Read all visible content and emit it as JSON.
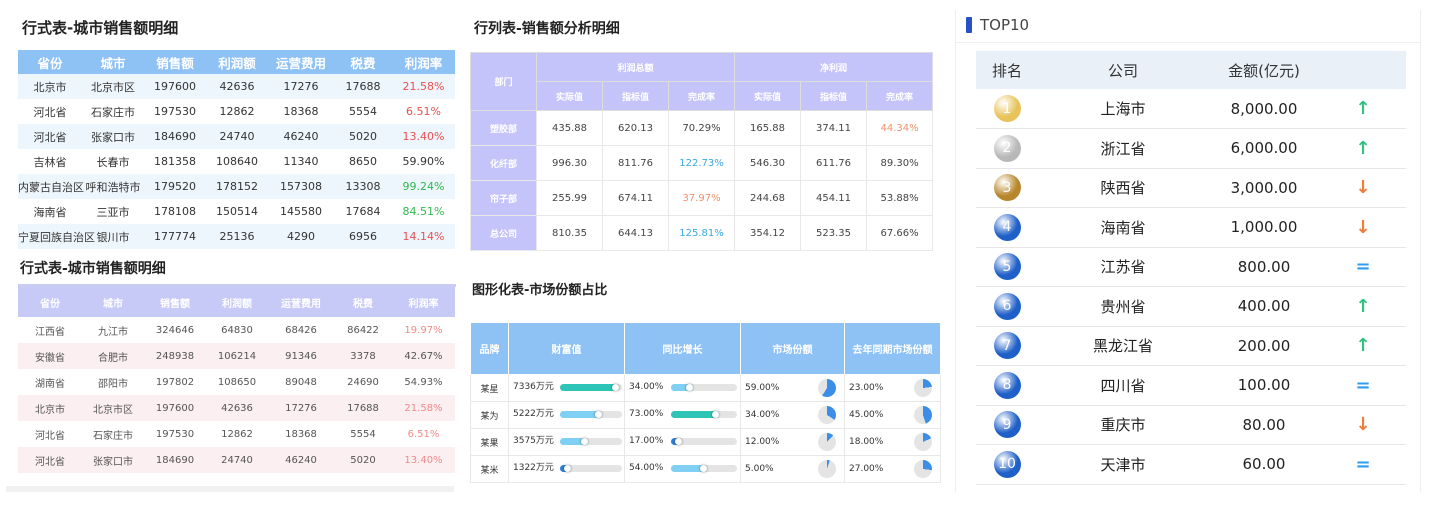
{
  "p1": {
    "title": "行式表-城市销售额明细",
    "headers": [
      "省份",
      "城市",
      "销售额",
      "利润额",
      "运营费用",
      "税费",
      "利润率"
    ],
    "rows": [
      [
        "北京市",
        "北京市区",
        "197600",
        "42636",
        "17276",
        "17688",
        "21.58%"
      ],
      [
        "河北省",
        "石家庄市",
        "197530",
        "12862",
        "18368",
        "5554",
        "6.51%"
      ],
      [
        "河北省",
        "张家口市",
        "184690",
        "24740",
        "46240",
        "5020",
        "13.40%"
      ],
      [
        "吉林省",
        "长春市",
        "181358",
        "108640",
        "11340",
        "8650",
        "59.90%"
      ],
      [
        "内蒙古自治区",
        "呼和浩特市",
        "179520",
        "178152",
        "157308",
        "13308",
        "99.24%"
      ],
      [
        "海南省",
        "三亚市",
        "178108",
        "150514",
        "145580",
        "17684",
        "84.51%"
      ],
      [
        "宁夏回族自治区",
        "银川市",
        "177774",
        "25136",
        "4290",
        "6956",
        "14.14%"
      ]
    ],
    "rate_colors": [
      "#e85050",
      "#e85050",
      "#e85050",
      "#333333",
      "#2eb84d",
      "#2eb84d",
      "#e85050"
    ]
  },
  "p2": {
    "title": "行式表-城市销售额明细",
    "headers": [
      "省份",
      "城市",
      "销售额",
      "利润额",
      "运营费用",
      "税费",
      "利润率"
    ],
    "rows": [
      [
        "江西省",
        "九江市",
        "324646",
        "64830",
        "68426",
        "86422",
        "19.97%"
      ],
      [
        "安徽省",
        "合肥市",
        "248938",
        "106214",
        "91346",
        "3378",
        "42.67%"
      ],
      [
        "湖南省",
        "邵阳市",
        "197802",
        "108650",
        "89048",
        "24690",
        "54.93%"
      ],
      [
        "北京市",
        "北京市区",
        "197600",
        "42636",
        "17276",
        "17688",
        "21.58%"
      ],
      [
        "河北省",
        "石家庄市",
        "197530",
        "12862",
        "18368",
        "5554",
        "6.51%"
      ],
      [
        "河北省",
        "张家口市",
        "184690",
        "24740",
        "46240",
        "5020",
        "13.40%"
      ]
    ],
    "rate_colors": [
      "#f08a8a",
      "#555555",
      "#555555",
      "#f08a8a",
      "#f08a8a",
      "#f08a8a"
    ]
  },
  "p3": {
    "title": "行列表-销售额分析明细",
    "dept_label": "部门",
    "group1": "利润总额",
    "group2": "净利润",
    "subheaders": [
      "实际值",
      "指标值",
      "完成率",
      "实际值",
      "指标值",
      "完成率"
    ],
    "rows": [
      {
        "dept": "塑胶部",
        "v": [
          "435.88",
          "620.13",
          "70.29%",
          "165.88",
          "374.11",
          "44.34%"
        ]
      },
      {
        "dept": "化纤部",
        "v": [
          "996.30",
          "811.76",
          "122.73%",
          "546.30",
          "611.76",
          "89.30%"
        ]
      },
      {
        "dept": "帘子部",
        "v": [
          "255.99",
          "674.11",
          "37.97%",
          "244.68",
          "454.11",
          "53.88%"
        ]
      },
      {
        "dept": "总公司",
        "v": [
          "810.35",
          "644.13",
          "125.81%",
          "354.12",
          "523.35",
          "67.66%"
        ]
      }
    ],
    "rate_colors": [
      [
        "#444444",
        "#f0916a"
      ],
      [
        "#3ba8e0",
        "#444444"
      ],
      [
        "#f0916a",
        "#444444"
      ],
      [
        "#3ba8e0",
        "#444444"
      ]
    ]
  },
  "p4": {
    "title": "图形化表-市场份额占比",
    "headers": [
      "品牌",
      "财富值",
      "同比增长",
      "市场份额",
      "去年同期市场份额"
    ],
    "rows": [
      {
        "brand": "某星",
        "wealth": "7336万元",
        "wealth_frac": 0.95,
        "wealth_color": "#2ec4b6",
        "growth": "34.00%",
        "growth_frac": 0.34,
        "growth_color": "#7fd0f2",
        "share": "59.00%",
        "share_frac": 0.59,
        "last": "23.00%",
        "last_frac": 0.23
      },
      {
        "brand": "某为",
        "wealth": "5222万元",
        "wealth_frac": 0.68,
        "wealth_color": "#7fd0f2",
        "growth": "73.00%",
        "growth_frac": 0.73,
        "growth_color": "#2ec4b6",
        "share": "34.00%",
        "share_frac": 0.34,
        "last": "45.00%",
        "last_frac": 0.45
      },
      {
        "brand": "某果",
        "wealth": "3575万元",
        "wealth_frac": 0.45,
        "wealth_color": "#7fd0f2",
        "growth": "17.00%",
        "growth_frac": 0.17,
        "growth_color": "#2f7fd8",
        "share": "12.00%",
        "share_frac": 0.12,
        "last": "18.00%",
        "last_frac": 0.18
      },
      {
        "brand": "某米",
        "wealth": "1322万元",
        "wealth_frac": 0.18,
        "wealth_color": "#2f7fd8",
        "growth": "54.00%",
        "growth_frac": 0.54,
        "growth_color": "#7fd0f2",
        "share": "5.00%",
        "share_frac": 0.05,
        "last": "27.00%",
        "last_frac": 0.27
      }
    ]
  },
  "p5": {
    "title": "TOP10",
    "headers": [
      "排名",
      "公司",
      "金额(亿元)"
    ],
    "rows": [
      {
        "rank": "1",
        "name": "上海市",
        "amount": "8,000.00",
        "trend": "up",
        "medal": "gold"
      },
      {
        "rank": "2",
        "name": "浙江省",
        "amount": "6,000.00",
        "trend": "up",
        "medal": "silver"
      },
      {
        "rank": "3",
        "name": "陕西省",
        "amount": "3,000.00",
        "trend": "down",
        "medal": "bronze"
      },
      {
        "rank": "4",
        "name": "海南省",
        "amount": "1,000.00",
        "trend": "down",
        "medal": "blue"
      },
      {
        "rank": "5",
        "name": "江苏省",
        "amount": "800.00",
        "trend": "eq",
        "medal": "blue"
      },
      {
        "rank": "6",
        "name": "贵州省",
        "amount": "400.00",
        "trend": "up",
        "medal": "blue"
      },
      {
        "rank": "7",
        "name": "黑龙江省",
        "amount": "200.00",
        "trend": "up",
        "medal": "blue"
      },
      {
        "rank": "8",
        "name": "四川省",
        "amount": "100.00",
        "trend": "eq",
        "medal": "blue"
      },
      {
        "rank": "9",
        "name": "重庆市",
        "amount": "80.00",
        "trend": "down",
        "medal": "blue"
      },
      {
        "rank": "10",
        "name": "天津市",
        "amount": "60.00",
        "trend": "eq",
        "medal": "blue"
      }
    ],
    "trend_icons": {
      "up": "arrow-up-icon",
      "down": "arrow-down-icon",
      "eq": "equals-icon"
    },
    "colors": {
      "gold": "#e8c25a",
      "silver": "#b8b8b8",
      "bronze": "#b8862c",
      "blue": "#1f5fc8",
      "up": "#2ec27e",
      "down": "#f07c3a",
      "eq": "#2e9cf0"
    }
  }
}
